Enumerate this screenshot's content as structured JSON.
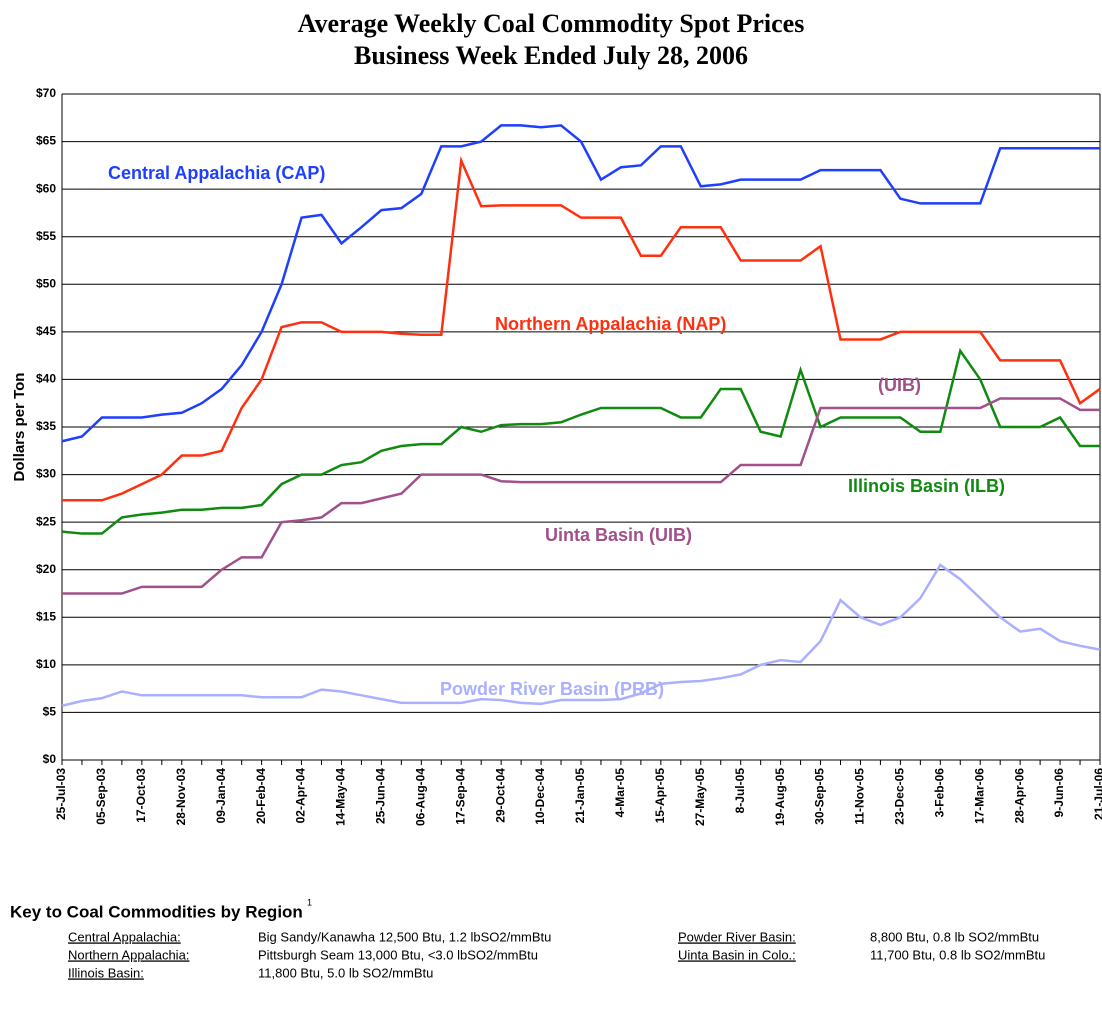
{
  "chart_data": {
    "type": "line",
    "title": "Average Weekly Coal Commodity Spot Prices",
    "subtitle": "Business Week Ended July 28, 2006",
    "y_label": "Dollars per Ton",
    "categories": [
      "25-Jul-03",
      null,
      "05-Sep-03",
      null,
      "17-Oct-03",
      null,
      "28-Nov-03",
      null,
      "09-Jan-04",
      null,
      "20-Feb-04",
      null,
      "02-Apr-04",
      null,
      "14-May-04",
      null,
      "25-Jun-04",
      null,
      "06-Aug-04",
      null,
      "17-Sep-04",
      null,
      "29-Oct-04",
      null,
      "10-Dec-04",
      null,
      "21-Jan-05",
      null,
      "4-Mar-05",
      null,
      "15-Apr-05",
      null,
      "27-May-05",
      null,
      "8-Jul-05",
      null,
      "19-Aug-05",
      null,
      "30-Sep-05",
      null,
      "11-Nov-05",
      null,
      "23-Dec-05",
      null,
      "3-Feb-06",
      null,
      "17-Mar-06",
      null,
      "28-Apr-06",
      null,
      "9-Jun-06",
      null,
      "21-Jul-06"
    ],
    "ylim": [
      0,
      70
    ],
    "yticks": [
      {
        "value": 0,
        "label": "$0"
      },
      {
        "value": 5,
        "label": "$5"
      },
      {
        "value": 10,
        "label": "$10"
      },
      {
        "value": 15,
        "label": "$15"
      },
      {
        "value": 20,
        "label": "$20"
      },
      {
        "value": 25,
        "label": "$25"
      },
      {
        "value": 30,
        "label": "$30"
      },
      {
        "value": 35,
        "label": "$35"
      },
      {
        "value": 40,
        "label": "$40"
      },
      {
        "value": 45,
        "label": "$45"
      },
      {
        "value": 50,
        "label": "$50"
      },
      {
        "value": 55,
        "label": "$55"
      },
      {
        "value": 60,
        "label": "$60"
      },
      {
        "value": 65,
        "label": "$65"
      },
      {
        "value": 70,
        "label": "$70"
      }
    ],
    "grid": true,
    "series": [
      {
        "name": "Central Appalachia (CAP)",
        "color": "#1f3fff",
        "values": [
          33.5,
          34,
          36,
          36,
          36,
          36.3,
          36.5,
          37.5,
          39,
          41.5,
          45,
          50,
          57,
          57.3,
          54.3,
          56,
          57.8,
          58,
          59.5,
          64.5,
          64.5,
          65,
          66.7,
          66.7,
          66.5,
          66.7,
          65,
          61,
          62.3,
          62.5,
          64.5,
          64.5,
          60.3,
          60.5,
          61,
          61,
          61,
          61,
          62,
          62,
          62,
          62,
          59,
          58.5,
          58.5,
          58.5,
          58.5,
          64.3,
          64.3,
          64.3,
          64.3,
          64.3,
          64.3
        ]
      },
      {
        "name": "Northern Appalachia (NAP)",
        "color": "#ff3010",
        "values": [
          27.3,
          27.3,
          27.3,
          28,
          29,
          30,
          32,
          32,
          32.5,
          37,
          40,
          45.5,
          46,
          46,
          45,
          45,
          45,
          44.8,
          44.7,
          44.7,
          63,
          58.2,
          58.3,
          58.3,
          58.3,
          58.3,
          57,
          57,
          57,
          53,
          53,
          56,
          56,
          56,
          52.5,
          52.5,
          52.5,
          52.5,
          54,
          44.2,
          44.2,
          44.2,
          45,
          45,
          45,
          45,
          45,
          42,
          42,
          42,
          42,
          37.5,
          39
        ]
      },
      {
        "name": "Illinois Basin (ILB)",
        "color": "#108a10",
        "values": [
          24,
          23.8,
          23.8,
          25.5,
          25.8,
          26,
          26.3,
          26.3,
          26.5,
          26.5,
          26.8,
          29,
          30,
          30,
          31,
          31.3,
          32.5,
          33,
          33.2,
          33.2,
          35,
          34.5,
          35.2,
          35.3,
          35.3,
          35.5,
          36.3,
          37,
          37,
          37,
          37,
          36,
          36,
          39,
          39,
          34.5,
          34,
          41,
          35,
          36,
          36,
          36,
          36,
          34.5,
          34.5,
          43,
          40,
          35,
          35,
          35,
          36,
          33,
          33
        ]
      },
      {
        "name": "Uinta Basin (UIB)",
        "color": "#a0508a",
        "values": [
          17.5,
          17.5,
          17.5,
          17.5,
          18.2,
          18.2,
          18.2,
          18.2,
          20,
          21.3,
          21.3,
          25,
          25.2,
          25.5,
          27,
          27,
          27.5,
          28,
          30,
          30,
          30,
          30,
          29.3,
          29.2,
          29.2,
          29.2,
          29.2,
          29.2,
          29.2,
          29.2,
          29.2,
          29.2,
          29.2,
          29.2,
          31,
          31,
          31,
          31,
          37,
          37,
          37,
          37,
          37,
          37,
          37,
          37,
          37,
          38,
          38,
          38,
          38,
          36.8,
          36.8
        ]
      },
      {
        "name": "Powder River Basin (PRB)",
        "color": "#aab0ff",
        "values": [
          5.7,
          6.2,
          6.5,
          7.2,
          6.8,
          6.8,
          6.8,
          6.8,
          6.8,
          6.8,
          6.6,
          6.6,
          6.6,
          7.4,
          7.2,
          6.8,
          6.4,
          6,
          6,
          6,
          6,
          6.4,
          6.3,
          6,
          5.9,
          6.3,
          6.3,
          6.3,
          6.4,
          7,
          8,
          8.2,
          8.3,
          8.6,
          9,
          10,
          10.5,
          10.3,
          12.5,
          16.8,
          15,
          14.2,
          15,
          17,
          20.5,
          19,
          17,
          15,
          13.5,
          13.8,
          12.5,
          12,
          11.6
        ]
      }
    ],
    "annotations": [
      "(UIB)"
    ]
  },
  "key": {
    "title": "Key to Coal Commodities by Region",
    "footnote_marker": "1",
    "rows": [
      [
        "Central Appalachia:",
        "Big Sandy/Kanawha 12,500 Btu, 1.2 lbSO2/mmBtu"
      ],
      [
        "Northern Appalachia:",
        "Pittsburgh Seam 13,000 Btu, <3.0 lbSO2/mmBtu"
      ],
      [
        "Illinois Basin:",
        "11,800 Btu, 5.0 lb SO2/mmBtu"
      ],
      [
        "Powder River Basin:",
        "8,800 Btu, 0.8 lb SO2/mmBtu"
      ],
      [
        "Uinta Basin in Colo.:",
        "11,700 Btu, 0.8 lb SO2/mmBtu"
      ]
    ]
  }
}
